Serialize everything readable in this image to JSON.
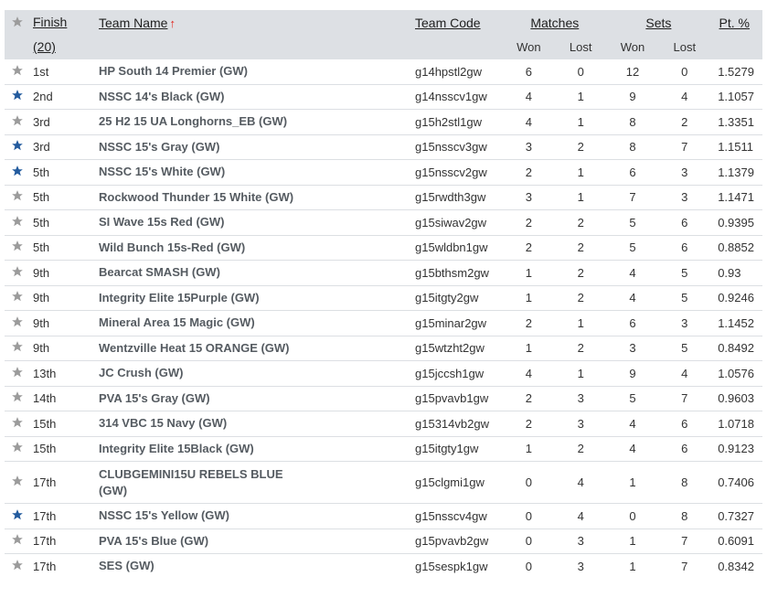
{
  "colors": {
    "star_active": "#235b9e",
    "star_inactive": "#9b9b9b",
    "header_bg": "#dde0e4",
    "sort_arrow": "#e2231a"
  },
  "headers": {
    "finish": "Finish",
    "finish_count": "(20)",
    "team_name": "Team Name",
    "sort_arrow": "↑",
    "team_code": "Team Code",
    "matches": "Matches",
    "sets": "Sets",
    "pt_pct": "Pt. %",
    "won": "Won",
    "lost": "Lost"
  },
  "rows": [
    {
      "starred": false,
      "finish": "1st",
      "name": "HP South 14 Premier (GW)",
      "code": "g14hpstl2gw",
      "mw": "6",
      "ml": "0",
      "sw": "12",
      "sl": "0",
      "pt": "1.5279"
    },
    {
      "starred": true,
      "finish": "2nd",
      "name": "NSSC 14's Black (GW)",
      "code": "g14nsscv1gw",
      "mw": "4",
      "ml": "1",
      "sw": "9",
      "sl": "4",
      "pt": "1.1057"
    },
    {
      "starred": false,
      "finish": "3rd",
      "name": "25 H2 15 UA Longhorns_EB (GW)",
      "code": "g15h2stl1gw",
      "mw": "4",
      "ml": "1",
      "sw": "8",
      "sl": "2",
      "pt": "1.3351"
    },
    {
      "starred": true,
      "finish": "3rd",
      "name": "NSSC 15's Gray (GW)",
      "code": "g15nsscv3gw",
      "mw": "3",
      "ml": "2",
      "sw": "8",
      "sl": "7",
      "pt": "1.1511"
    },
    {
      "starred": true,
      "finish": "5th",
      "name": "NSSC 15's White (GW)",
      "code": "g15nsscv2gw",
      "mw": "2",
      "ml": "1",
      "sw": "6",
      "sl": "3",
      "pt": "1.1379"
    },
    {
      "starred": false,
      "finish": "5th",
      "name": "Rockwood Thunder 15 White (GW)",
      "code": "g15rwdth3gw",
      "mw": "3",
      "ml": "1",
      "sw": "7",
      "sl": "3",
      "pt": "1.1471"
    },
    {
      "starred": false,
      "finish": "5th",
      "name": "SI Wave 15s Red (GW)",
      "code": "g15siwav2gw",
      "mw": "2",
      "ml": "2",
      "sw": "5",
      "sl": "6",
      "pt": "0.9395"
    },
    {
      "starred": false,
      "finish": "5th",
      "name": "Wild Bunch 15s-Red (GW)",
      "code": "g15wldbn1gw",
      "mw": "2",
      "ml": "2",
      "sw": "5",
      "sl": "6",
      "pt": "0.8852"
    },
    {
      "starred": false,
      "finish": "9th",
      "name": "Bearcat SMASH (GW)",
      "code": "g15bthsm2gw",
      "mw": "1",
      "ml": "2",
      "sw": "4",
      "sl": "5",
      "pt": "0.93"
    },
    {
      "starred": false,
      "finish": "9th",
      "name": "Integrity Elite 15Purple (GW)",
      "code": "g15itgty2gw",
      "mw": "1",
      "ml": "2",
      "sw": "4",
      "sl": "5",
      "pt": "0.9246"
    },
    {
      "starred": false,
      "finish": "9th",
      "name": "Mineral Area 15 Magic (GW)",
      "code": "g15minar2gw",
      "mw": "2",
      "ml": "1",
      "sw": "6",
      "sl": "3",
      "pt": "1.1452"
    },
    {
      "starred": false,
      "finish": "9th",
      "name": "Wentzville Heat 15 ORANGE (GW)",
      "code": "g15wtzht2gw",
      "mw": "1",
      "ml": "2",
      "sw": "3",
      "sl": "5",
      "pt": "0.8492"
    },
    {
      "starred": false,
      "finish": "13th",
      "name": "JC Crush (GW)",
      "code": "g15jccsh1gw",
      "mw": "4",
      "ml": "1",
      "sw": "9",
      "sl": "4",
      "pt": "1.0576"
    },
    {
      "starred": false,
      "finish": "14th",
      "name": "PVA 15's Gray (GW)",
      "code": "g15pvavb1gw",
      "mw": "2",
      "ml": "3",
      "sw": "5",
      "sl": "7",
      "pt": "0.9603"
    },
    {
      "starred": false,
      "finish": "15th",
      "name": "314 VBC 15 Navy (GW)",
      "code": "g15314vb2gw",
      "mw": "2",
      "ml": "3",
      "sw": "4",
      "sl": "6",
      "pt": "1.0718"
    },
    {
      "starred": false,
      "finish": "15th",
      "name": "Integrity Elite 15Black (GW)",
      "code": "g15itgty1gw",
      "mw": "1",
      "ml": "2",
      "sw": "4",
      "sl": "6",
      "pt": "0.9123"
    },
    {
      "starred": false,
      "finish": "17th",
      "name": "CLUBGEMINI15U REBELS BLUE (GW)",
      "code": "g15clgmi1gw",
      "mw": "0",
      "ml": "4",
      "sw": "1",
      "sl": "8",
      "pt": "0.7406",
      "tall": true
    },
    {
      "starred": true,
      "finish": "17th",
      "name": "NSSC 15's Yellow (GW)",
      "code": "g15nsscv4gw",
      "mw": "0",
      "ml": "4",
      "sw": "0",
      "sl": "8",
      "pt": "0.7327"
    },
    {
      "starred": false,
      "finish": "17th",
      "name": "PVA 15's Blue (GW)",
      "code": "g15pvavb2gw",
      "mw": "0",
      "ml": "3",
      "sw": "1",
      "sl": "7",
      "pt": "0.6091"
    },
    {
      "starred": false,
      "finish": "17th",
      "name": "SES (GW)",
      "code": "g15sespk1gw",
      "mw": "0",
      "ml": "3",
      "sw": "1",
      "sl": "7",
      "pt": "0.8342"
    }
  ]
}
